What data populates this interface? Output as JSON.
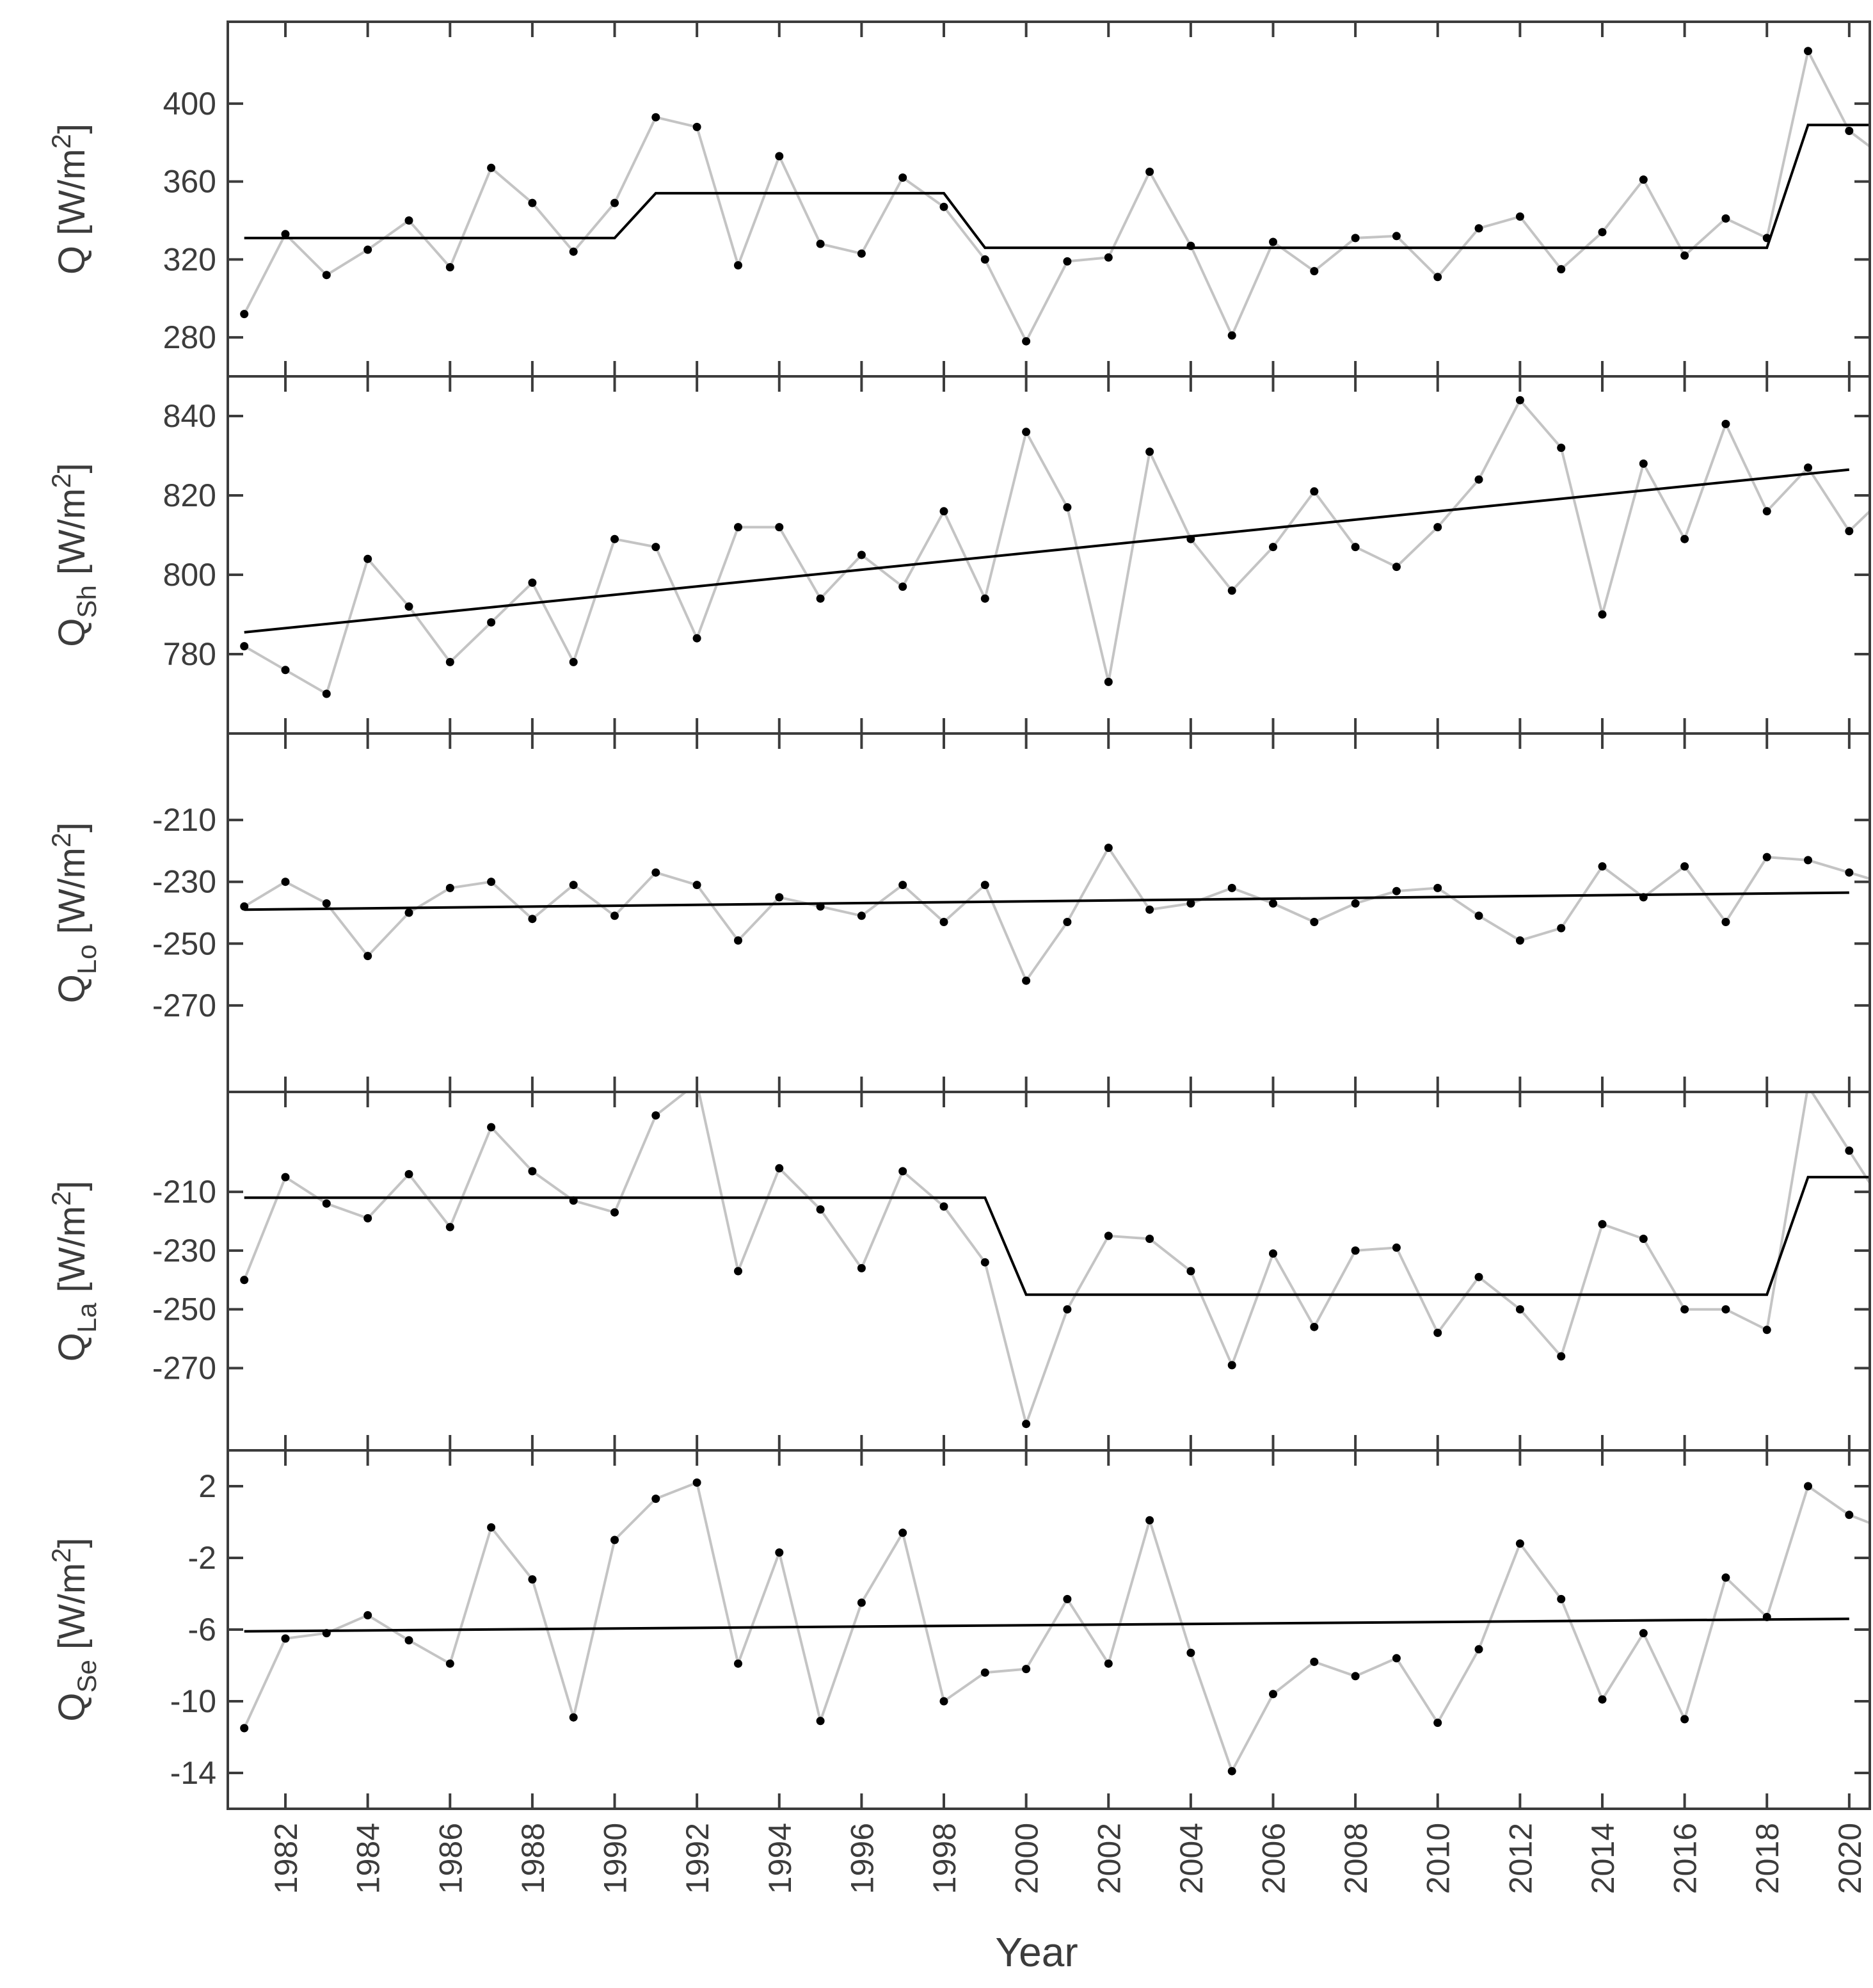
{
  "chart_data": {
    "type": "line",
    "xlabel": "Year",
    "x_tick_labels": [
      "1982",
      "1984",
      "1986",
      "1988",
      "1990",
      "1992",
      "1994",
      "1996",
      "1998",
      "2000",
      "2002",
      "2004",
      "2006",
      "2008",
      "2010",
      "2012",
      "2014",
      "2016",
      "2018",
      "2020"
    ],
    "x": [
      1981,
      1982,
      1983,
      1984,
      1985,
      1986,
      1987,
      1988,
      1989,
      1990,
      1991,
      1992,
      1993,
      1994,
      1995,
      1996,
      1997,
      1998,
      1999,
      2000,
      2001,
      2002,
      2003,
      2004,
      2005,
      2006,
      2007,
      2008,
      2009,
      2010,
      2011,
      2012,
      2013,
      2014,
      2015,
      2016,
      2017,
      2018,
      2019,
      2020,
      2021
    ],
    "xlim": [
      1980.6,
      2020.5
    ],
    "grid": false,
    "legend": "none",
    "colors": {
      "observed": "#c4c4c4",
      "fit": "#000000",
      "points": "#000000",
      "axis": "#3c3c3c"
    },
    "panels": [
      {
        "ylabel_main": "Q",
        "ylabel_sub": "",
        "ylabel_unit": "[W/m",
        "ylabel_sup": "2",
        "ylabel_close": "]",
        "ylim": [
          260,
          442
        ],
        "yticks": [
          "280",
          "320",
          "360",
          "400"
        ],
        "values": [
          292,
          333,
          312,
          325,
          340,
          316,
          367,
          349,
          324,
          349,
          393,
          388,
          317,
          373,
          328,
          323,
          362,
          347,
          320,
          278,
          319,
          321,
          365,
          327,
          281,
          329,
          314,
          331,
          332,
          311,
          336,
          342,
          315,
          334,
          361,
          322,
          341,
          331,
          427,
          386,
          370
        ],
        "fit": {
          "kind": "step",
          "points": [
            [
              1981,
              331
            ],
            [
              1990,
              331
            ],
            [
              1991,
              354
            ],
            [
              1998,
              354
            ],
            [
              1999,
              326
            ],
            [
              2018,
              326
            ],
            [
              2019,
              389
            ],
            [
              2021,
              389
            ]
          ]
        }
      },
      {
        "ylabel_main": "Q",
        "ylabel_sub": "Sh",
        "ylabel_unit": "[W/m",
        "ylabel_sup": "2",
        "ylabel_close": "]",
        "ylim": [
          760,
          850
        ],
        "yticks": [
          "780",
          "800",
          "820",
          "840"
        ],
        "values": [
          782,
          776,
          770,
          804,
          792,
          778,
          788,
          798,
          778,
          809,
          807,
          784,
          812,
          812,
          794,
          805,
          797,
          816,
          794,
          836,
          817,
          773,
          831,
          809,
          796,
          807,
          821,
          807,
          802,
          812,
          824,
          844,
          832,
          790,
          828,
          809,
          838,
          816,
          827,
          811,
          821
        ],
        "fit": {
          "kind": "trend",
          "points": [
            [
              1981,
              785.5
            ],
            [
              2020,
              826.5
            ]
          ]
        }
      },
      {
        "ylabel_main": "Q",
        "ylabel_sub": "Lo",
        "ylabel_unit": "[W/m",
        "ylabel_sup": "2",
        "ylabel_close": "]",
        "ylim": [
          -298,
          -182
        ],
        "yticks": [
          "-210",
          "-230",
          "-250",
          "-270"
        ],
        "values": [
          -238,
          -230,
          -237,
          -254,
          -240,
          -232,
          -230,
          -242,
          -231,
          -241,
          -227,
          -231,
          -249,
          -235,
          -238,
          -241,
          -231,
          -243,
          -231,
          -262,
          -243,
          -219,
          -239,
          -237,
          -232,
          -237,
          -243,
          -237,
          -233,
          -232,
          -241,
          -249,
          -245,
          -225,
          -235,
          -225,
          -243,
          -222,
          -223,
          -227,
          -231
        ],
        "fit": {
          "kind": "trend",
          "points": [
            [
              1981,
              -239
            ],
            [
              2020,
              -233.5
            ]
          ]
        }
      },
      {
        "ylabel_main": "Q",
        "ylabel_sub": "La",
        "ylabel_unit": "[W/m",
        "ylabel_sup": "2",
        "ylabel_close": "]",
        "ylim": [
          -298,
          -176
        ],
        "yticks": [
          "-210",
          "-230",
          "-250",
          "-270"
        ],
        "values": [
          -240,
          -205,
          -214,
          -219,
          -204,
          -222,
          -188,
          -203,
          -213,
          -217,
          -184,
          -173,
          -237,
          -202,
          -216,
          -236,
          -203,
          -215,
          -234,
          -289,
          -250,
          -225,
          -226,
          -237,
          -269,
          -231,
          -256,
          -230,
          -229,
          -258,
          -239,
          -250,
          -266,
          -221,
          -226,
          -250,
          -250,
          -257,
          -174,
          -196,
          -218
        ],
        "fit": {
          "kind": "step",
          "points": [
            [
              1981,
              -212
            ],
            [
              1999,
              -212
            ],
            [
              2000,
              -245
            ],
            [
              2018,
              -245
            ],
            [
              2019,
              -205
            ],
            [
              2021,
              -205
            ]
          ]
        }
      },
      {
        "ylabel_main": "Q",
        "ylabel_sub": "Se",
        "ylabel_unit": "[W/m",
        "ylabel_sup": "2",
        "ylabel_close": "]",
        "ylim": [
          -16,
          4
        ],
        "yticks": [
          "2",
          "-2",
          "-6",
          "-10",
          "-14"
        ],
        "values": [
          -11.5,
          -6.5,
          -6.2,
          -5.2,
          -6.6,
          -7.9,
          -0.3,
          -3.2,
          -10.9,
          -1.0,
          1.3,
          2.2,
          -7.9,
          -1.7,
          -11.1,
          -4.5,
          -0.6,
          -10.0,
          -8.4,
          -8.2,
          -4.3,
          -7.9,
          0.1,
          -7.3,
          -13.9,
          -9.6,
          -7.8,
          -8.6,
          -7.6,
          -11.2,
          -7.1,
          -1.2,
          -4.3,
          -9.9,
          -6.2,
          -11.0,
          -3.1,
          -5.3,
          2.0,
          0.4,
          -0.5
        ],
        "fit": {
          "kind": "trend",
          "points": [
            [
              1981,
              -6.1
            ],
            [
              2020,
              -5.4
            ]
          ]
        }
      }
    ]
  }
}
